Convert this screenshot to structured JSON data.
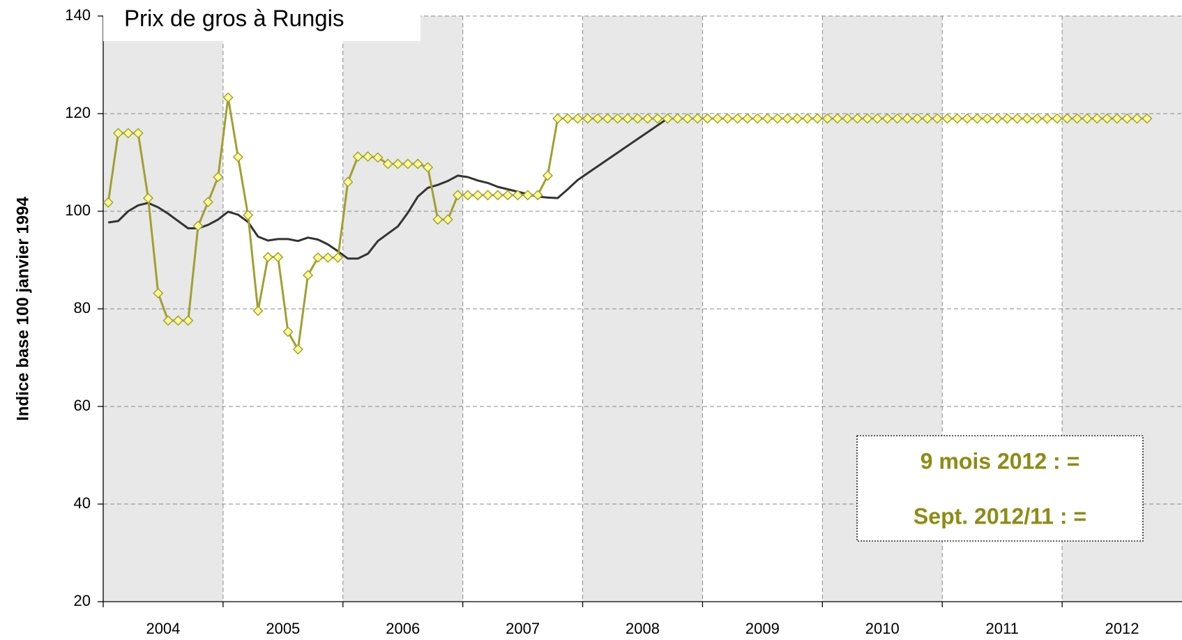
{
  "chart_data": {
    "type": "line",
    "title": "Prix de gros à Rungis",
    "y_label": "Indice base 100 janvier 1994",
    "annotations": [
      "9 mois 2012 : =",
      "Sept. 2012/11 : ="
    ],
    "categories": [
      null,
      null,
      null,
      null,
      null,
      null,
      "2004",
      null,
      null,
      null,
      null,
      null,
      null,
      null,
      null,
      null,
      null,
      null,
      "2005",
      null,
      null,
      null,
      null,
      null,
      null,
      null,
      null,
      null,
      null,
      null,
      "2006",
      null,
      null,
      null,
      null,
      null,
      null,
      null,
      null,
      null,
      null,
      null,
      "2007",
      null,
      null,
      null,
      null,
      null,
      null,
      null,
      null,
      null,
      null,
      null,
      "2008",
      null,
      null,
      null,
      null,
      null,
      null,
      null,
      null,
      null,
      null,
      null,
      "2009",
      null,
      null,
      null,
      null,
      null,
      null,
      null,
      null,
      null,
      null,
      null,
      "2010",
      null,
      null,
      null,
      null,
      null,
      null,
      null,
      null,
      null,
      null,
      null,
      "2011",
      null,
      null,
      null,
      null,
      null,
      null,
      null,
      null,
      null,
      null,
      null,
      "2012",
      null,
      null
    ],
    "ylim": [
      20,
      140
    ],
    "yticks": [
      20,
      40,
      60,
      80,
      100,
      120,
      140
    ],
    "grid": true,
    "series": [
      {
        "color": "#333333",
        "marker": false,
        "values": [
          97.7,
          98,
          100,
          101.2,
          101.7,
          100.8,
          99.5,
          98,
          96.5,
          96.5,
          97.2,
          98.3,
          99.9,
          99.3,
          97.8,
          94.8,
          94,
          94.3,
          94.3,
          93.9,
          94.6,
          94.2,
          93.2,
          91.8,
          90.3,
          90.3,
          91.3,
          93.9,
          95.4,
          96.9,
          99.7,
          103,
          104.8,
          105.4,
          106.2,
          107.3,
          107,
          106.3,
          105.8,
          105,
          104.5,
          104,
          103.5,
          103,
          102.8,
          102.7,
          104.5,
          106.4,
          107.8,
          109.2,
          110.6,
          112,
          113.4,
          114.8,
          116.2,
          117.6,
          119,
          null,
          null,
          null,
          null,
          null,
          null,
          null,
          null,
          null,
          null,
          null,
          null,
          null,
          null,
          null,
          null,
          null,
          null,
          null,
          null,
          null,
          null,
          null,
          null,
          null,
          null,
          null,
          null,
          null,
          null,
          null,
          null,
          null,
          null,
          null,
          null,
          null,
          null,
          null,
          null,
          null,
          null,
          null,
          null,
          null,
          null,
          null,
          null
        ]
      },
      {
        "color": "#a0a030",
        "marker": true,
        "values": [
          101.8,
          116,
          116,
          116,
          102.7,
          83.2,
          77.6,
          77.6,
          77.6,
          97,
          101.9,
          107,
          123.3,
          111.1,
          99.2,
          79.6,
          90.6,
          90.6,
          75.3,
          71.7,
          86.9,
          90.5,
          90.5,
          90.5,
          106,
          111.2,
          111.2,
          111,
          109.7,
          109.7,
          109.7,
          109.7,
          109,
          98.3,
          98.3,
          103.3,
          103.3,
          103.3,
          103.3,
          103.3,
          103.3,
          103.3,
          103.3,
          103.3,
          107.3,
          119,
          119,
          119,
          119,
          119,
          119,
          119,
          119,
          119,
          119,
          119,
          119,
          119,
          119,
          119,
          119,
          119,
          119,
          119,
          119,
          119,
          119,
          119,
          119,
          119,
          119,
          119,
          119,
          119,
          119,
          119,
          119,
          119,
          119,
          119,
          119,
          119,
          119,
          119,
          119,
          119,
          119,
          119,
          119,
          119,
          119,
          119,
          119,
          119,
          119,
          119,
          119,
          119,
          119,
          119,
          119,
          119,
          119,
          119,
          119
        ]
      }
    ]
  }
}
